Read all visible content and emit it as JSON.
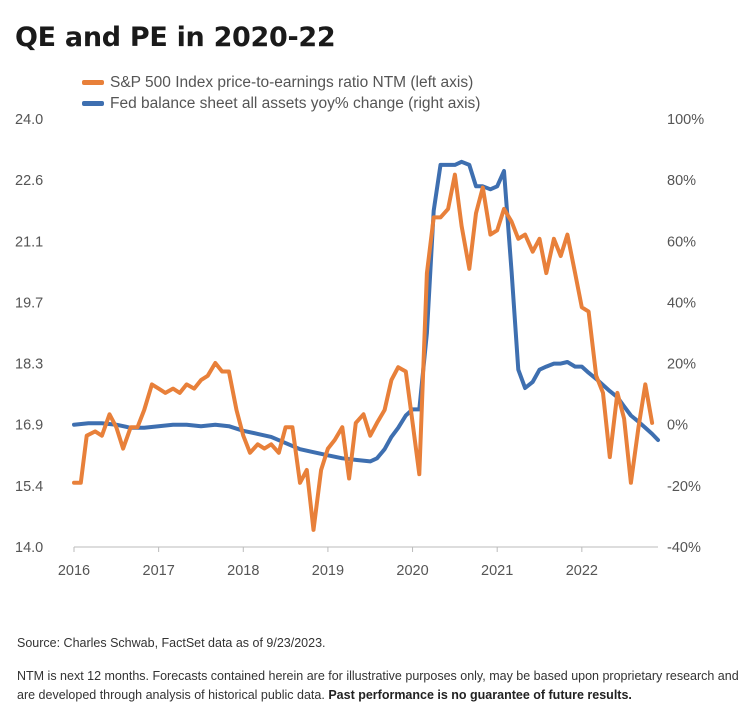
{
  "chart_data": {
    "type": "line",
    "title": "QE and PE in 2020-22",
    "x_ticks": [
      "2016",
      "2017",
      "2018",
      "2019",
      "2020",
      "2021",
      "2022"
    ],
    "xlim": [
      2016.0,
      2022.9
    ],
    "y_left": {
      "ticks": [
        "24.0",
        "22.6",
        "21.1",
        "19.7",
        "18.3",
        "16.9",
        "15.4",
        "14.0"
      ],
      "lim": [
        14.0,
        24.0
      ]
    },
    "y_right": {
      "ticks": [
        "100%",
        "80%",
        "60%",
        "40%",
        "20%",
        "0%",
        "-20%",
        "-40%"
      ],
      "lim": [
        -40,
        100
      ]
    },
    "legend_position": "top-left",
    "series": [
      {
        "name": "S&P 500 Index price-to-earnings ratio NTM (left axis)",
        "axis": "left",
        "color": "#E8803A",
        "points": [
          [
            2016.0,
            15.5
          ],
          [
            2016.08,
            15.5
          ],
          [
            2016.15,
            16.6
          ],
          [
            2016.25,
            16.7
          ],
          [
            2016.33,
            16.6
          ],
          [
            2016.42,
            17.1
          ],
          [
            2016.5,
            16.8
          ],
          [
            2016.58,
            16.3
          ],
          [
            2016.67,
            16.8
          ],
          [
            2016.75,
            16.8
          ],
          [
            2016.83,
            17.2
          ],
          [
            2016.92,
            17.8
          ],
          [
            2017.0,
            17.7
          ],
          [
            2017.08,
            17.6
          ],
          [
            2017.17,
            17.7
          ],
          [
            2017.25,
            17.6
          ],
          [
            2017.33,
            17.8
          ],
          [
            2017.42,
            17.7
          ],
          [
            2017.5,
            17.9
          ],
          [
            2017.58,
            18.0
          ],
          [
            2017.67,
            18.3
          ],
          [
            2017.75,
            18.1
          ],
          [
            2017.83,
            18.1
          ],
          [
            2017.92,
            17.2
          ],
          [
            2018.0,
            16.6
          ],
          [
            2018.08,
            16.2
          ],
          [
            2018.17,
            16.4
          ],
          [
            2018.25,
            16.3
          ],
          [
            2018.33,
            16.4
          ],
          [
            2018.42,
            16.2
          ],
          [
            2018.5,
            16.8
          ],
          [
            2018.58,
            16.8
          ],
          [
            2018.67,
            15.5
          ],
          [
            2018.75,
            15.8
          ],
          [
            2018.83,
            14.4
          ],
          [
            2018.92,
            15.8
          ],
          [
            2019.0,
            16.3
          ],
          [
            2019.08,
            16.5
          ],
          [
            2019.17,
            16.8
          ],
          [
            2019.25,
            15.6
          ],
          [
            2019.33,
            16.9
          ],
          [
            2019.42,
            17.1
          ],
          [
            2019.5,
            16.6
          ],
          [
            2019.58,
            16.9
          ],
          [
            2019.67,
            17.2
          ],
          [
            2019.75,
            17.9
          ],
          [
            2019.83,
            18.2
          ],
          [
            2019.92,
            18.1
          ],
          [
            2020.0,
            16.9
          ],
          [
            2020.08,
            15.7
          ],
          [
            2020.17,
            20.4
          ],
          [
            2020.25,
            21.7
          ],
          [
            2020.33,
            21.7
          ],
          [
            2020.42,
            21.9
          ],
          [
            2020.5,
            22.7
          ],
          [
            2020.58,
            21.5
          ],
          [
            2020.67,
            20.5
          ],
          [
            2020.75,
            21.8
          ],
          [
            2020.83,
            22.4
          ],
          [
            2020.92,
            21.3
          ],
          [
            2021.0,
            21.4
          ],
          [
            2021.08,
            21.9
          ],
          [
            2021.17,
            21.6
          ],
          [
            2021.25,
            21.2
          ],
          [
            2021.33,
            21.3
          ],
          [
            2021.42,
            20.9
          ],
          [
            2021.5,
            21.2
          ],
          [
            2021.58,
            20.4
          ],
          [
            2021.67,
            21.2
          ],
          [
            2021.75,
            20.8
          ],
          [
            2021.83,
            21.3
          ],
          [
            2021.92,
            20.4
          ],
          [
            2022.0,
            19.6
          ],
          [
            2022.08,
            19.5
          ],
          [
            2022.17,
            18.0
          ],
          [
            2022.25,
            17.6
          ],
          [
            2022.33,
            16.1
          ],
          [
            2022.42,
            17.6
          ],
          [
            2022.5,
            17.0
          ],
          [
            2022.58,
            15.5
          ],
          [
            2022.67,
            16.8
          ],
          [
            2022.75,
            17.8
          ],
          [
            2022.83,
            16.9
          ]
        ]
      },
      {
        "name": "Fed balance sheet all assets yoy% change (right axis)",
        "axis": "right",
        "color": "#3E6FB0",
        "points": [
          [
            2016.0,
            0
          ],
          [
            2016.17,
            0.5
          ],
          [
            2016.33,
            0.5
          ],
          [
            2016.5,
            0
          ],
          [
            2016.67,
            -1
          ],
          [
            2016.83,
            -1
          ],
          [
            2017.0,
            -0.5
          ],
          [
            2017.17,
            0
          ],
          [
            2017.33,
            0
          ],
          [
            2017.5,
            -0.5
          ],
          [
            2017.67,
            0
          ],
          [
            2017.83,
            -0.5
          ],
          [
            2018.0,
            -2
          ],
          [
            2018.17,
            -3
          ],
          [
            2018.33,
            -4
          ],
          [
            2018.5,
            -6
          ],
          [
            2018.67,
            -8
          ],
          [
            2018.83,
            -9
          ],
          [
            2019.0,
            -10
          ],
          [
            2019.17,
            -11
          ],
          [
            2019.33,
            -11.5
          ],
          [
            2019.5,
            -12
          ],
          [
            2019.58,
            -11
          ],
          [
            2019.67,
            -8
          ],
          [
            2019.75,
            -4
          ],
          [
            2019.83,
            -1
          ],
          [
            2019.92,
            3
          ],
          [
            2020.0,
            5
          ],
          [
            2020.08,
            5
          ],
          [
            2020.17,
            30
          ],
          [
            2020.25,
            70
          ],
          [
            2020.33,
            85
          ],
          [
            2020.42,
            85
          ],
          [
            2020.5,
            85
          ],
          [
            2020.58,
            86
          ],
          [
            2020.67,
            85
          ],
          [
            2020.75,
            78
          ],
          [
            2020.83,
            78
          ],
          [
            2020.92,
            77
          ],
          [
            2021.0,
            78
          ],
          [
            2021.08,
            83
          ],
          [
            2021.17,
            50
          ],
          [
            2021.25,
            18
          ],
          [
            2021.33,
            12
          ],
          [
            2021.42,
            14
          ],
          [
            2021.5,
            18
          ],
          [
            2021.58,
            19
          ],
          [
            2021.67,
            20
          ],
          [
            2021.75,
            20
          ],
          [
            2021.83,
            20.5
          ],
          [
            2021.92,
            19
          ],
          [
            2022.0,
            19
          ],
          [
            2022.08,
            17
          ],
          [
            2022.17,
            15
          ],
          [
            2022.25,
            13
          ],
          [
            2022.33,
            11
          ],
          [
            2022.42,
            9
          ],
          [
            2022.5,
            6
          ],
          [
            2022.58,
            3
          ],
          [
            2022.67,
            1
          ],
          [
            2022.75,
            -1
          ],
          [
            2022.83,
            -3
          ],
          [
            2022.9,
            -5
          ]
        ]
      }
    ]
  },
  "footer": {
    "source": "Source: Charles Schwab, FactSet data as of 9/23/2023.",
    "note": "NTM is next 12 months. Forecasts contained herein are for illustrative purposes only, may be based upon proprietary research and are developed through analysis of historical public data.",
    "note_bold": "Past performance is no guarantee of future results."
  }
}
